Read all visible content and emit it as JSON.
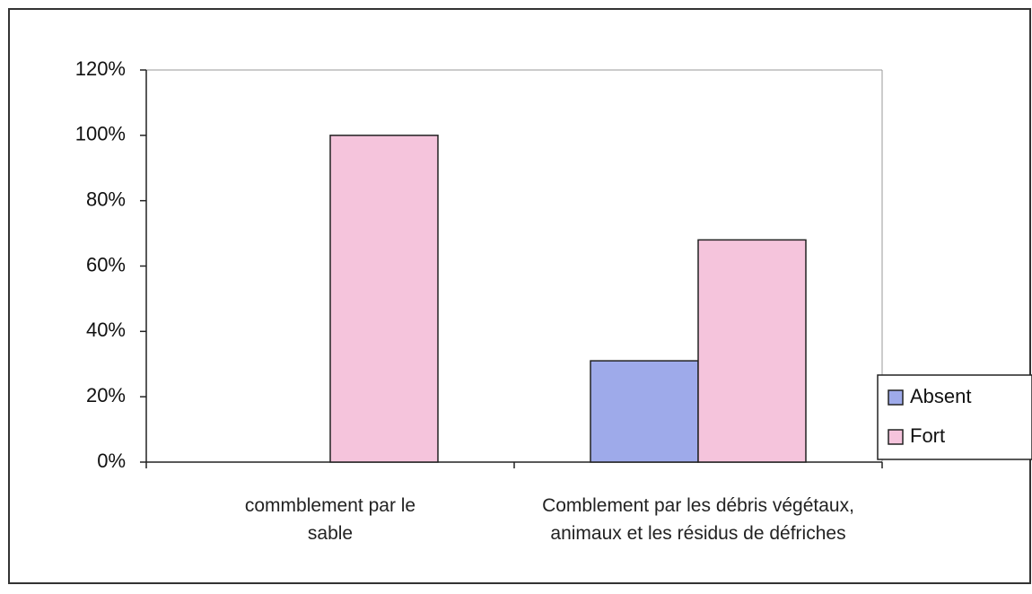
{
  "chart_data": {
    "type": "bar",
    "categories": [
      "commblement par le sable",
      "Comblement par les débris végétaux, animaux et les résidus de défriches"
    ],
    "series": [
      {
        "name": "Absent",
        "color": "#9eaaea",
        "values": [
          0,
          31
        ]
      },
      {
        "name": "Fort",
        "color": "#f5c4dc",
        "values": [
          100,
          68
        ]
      }
    ],
    "ylim": [
      0,
      120
    ],
    "yticks": [
      {
        "value": 0,
        "label": "0%"
      },
      {
        "value": 20,
        "label": "20%"
      },
      {
        "value": 40,
        "label": "40%"
      },
      {
        "value": 60,
        "label": "60%"
      },
      {
        "value": 80,
        "label": "80%"
      },
      {
        "value": 100,
        "label": "100%"
      },
      {
        "value": 120,
        "label": "120%"
      }
    ],
    "legend": "right"
  }
}
